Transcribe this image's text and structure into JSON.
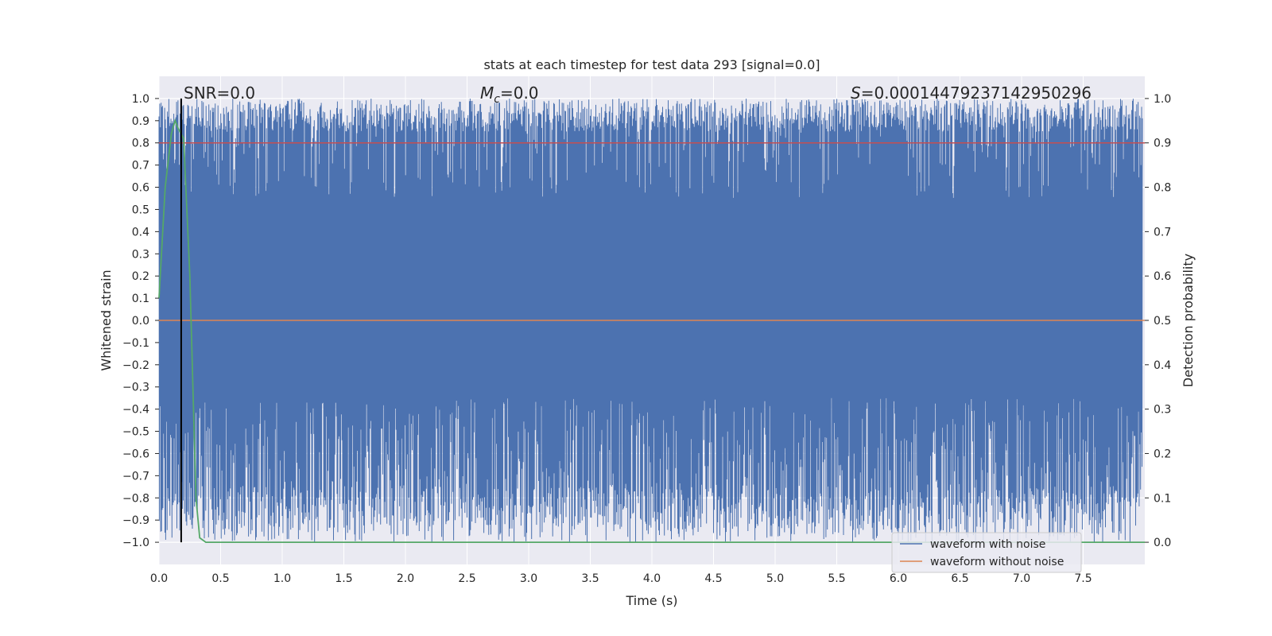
{
  "chart_data": {
    "type": "line",
    "title": "stats at each timestep for test data 293 [signal=0.0]",
    "xlabel": "Time (s)",
    "ylabel": "Whitened strain",
    "y2label": "Detection probability",
    "xlim": [
      0.0,
      8.0
    ],
    "ylim": [
      -1.1,
      1.1
    ],
    "y2lim": [
      -0.05,
      1.05
    ],
    "x_ticks": [
      "0.0",
      "0.5",
      "1.0",
      "1.5",
      "2.0",
      "2.5",
      "3.0",
      "3.5",
      "4.0",
      "4.5",
      "5.0",
      "5.5",
      "6.0",
      "6.5",
      "7.0",
      "7.5"
    ],
    "y_ticks": [
      "1.0",
      "0.9",
      "0.8",
      "0.7",
      "0.6",
      "0.5",
      "0.4",
      "0.3",
      "0.2",
      "0.1",
      "0.0",
      "−0.1",
      "−0.2",
      "−0.3",
      "−0.4",
      "−0.5",
      "−0.6",
      "−0.7",
      "−0.8",
      "−0.9",
      "−1.0"
    ],
    "y2_ticks": [
      "1.0",
      "0.9",
      "0.8",
      "0.7",
      "0.6",
      "0.5",
      "0.4",
      "0.3",
      "0.2",
      "0.1",
      "0.0"
    ],
    "grid": true,
    "legend_position": "bottom-right",
    "series": [
      {
        "name": "waveform with noise",
        "color": "#4c72b0",
        "description_range": [
          -1.0,
          1.0
        ]
      },
      {
        "name": "waveform without noise",
        "color": "#dd8452",
        "values_constant": 0.0
      }
    ],
    "threshold": {
      "value": 0.9,
      "axis": "right",
      "color": "#c44e52"
    },
    "probability": {
      "color": "#55a868",
      "points": [
        [
          0.0,
          0.55
        ],
        [
          0.05,
          0.8
        ],
        [
          0.1,
          0.92
        ],
        [
          0.13,
          0.95
        ],
        [
          0.16,
          0.93
        ],
        [
          0.2,
          0.91
        ],
        [
          0.25,
          0.6
        ],
        [
          0.3,
          0.1
        ],
        [
          0.33,
          0.01
        ],
        [
          0.38,
          0.0
        ],
        [
          8.0,
          0.0
        ]
      ]
    },
    "marker_line": {
      "x": 0.18,
      "color": "#000000"
    },
    "annotations": {
      "snr": "SNR=0.0",
      "mc_symbol": "M",
      "mc_sub": "c",
      "mc_value": "=0.0",
      "s_symbol": "S",
      "s_value": "=0.00014479237142950296"
    }
  }
}
